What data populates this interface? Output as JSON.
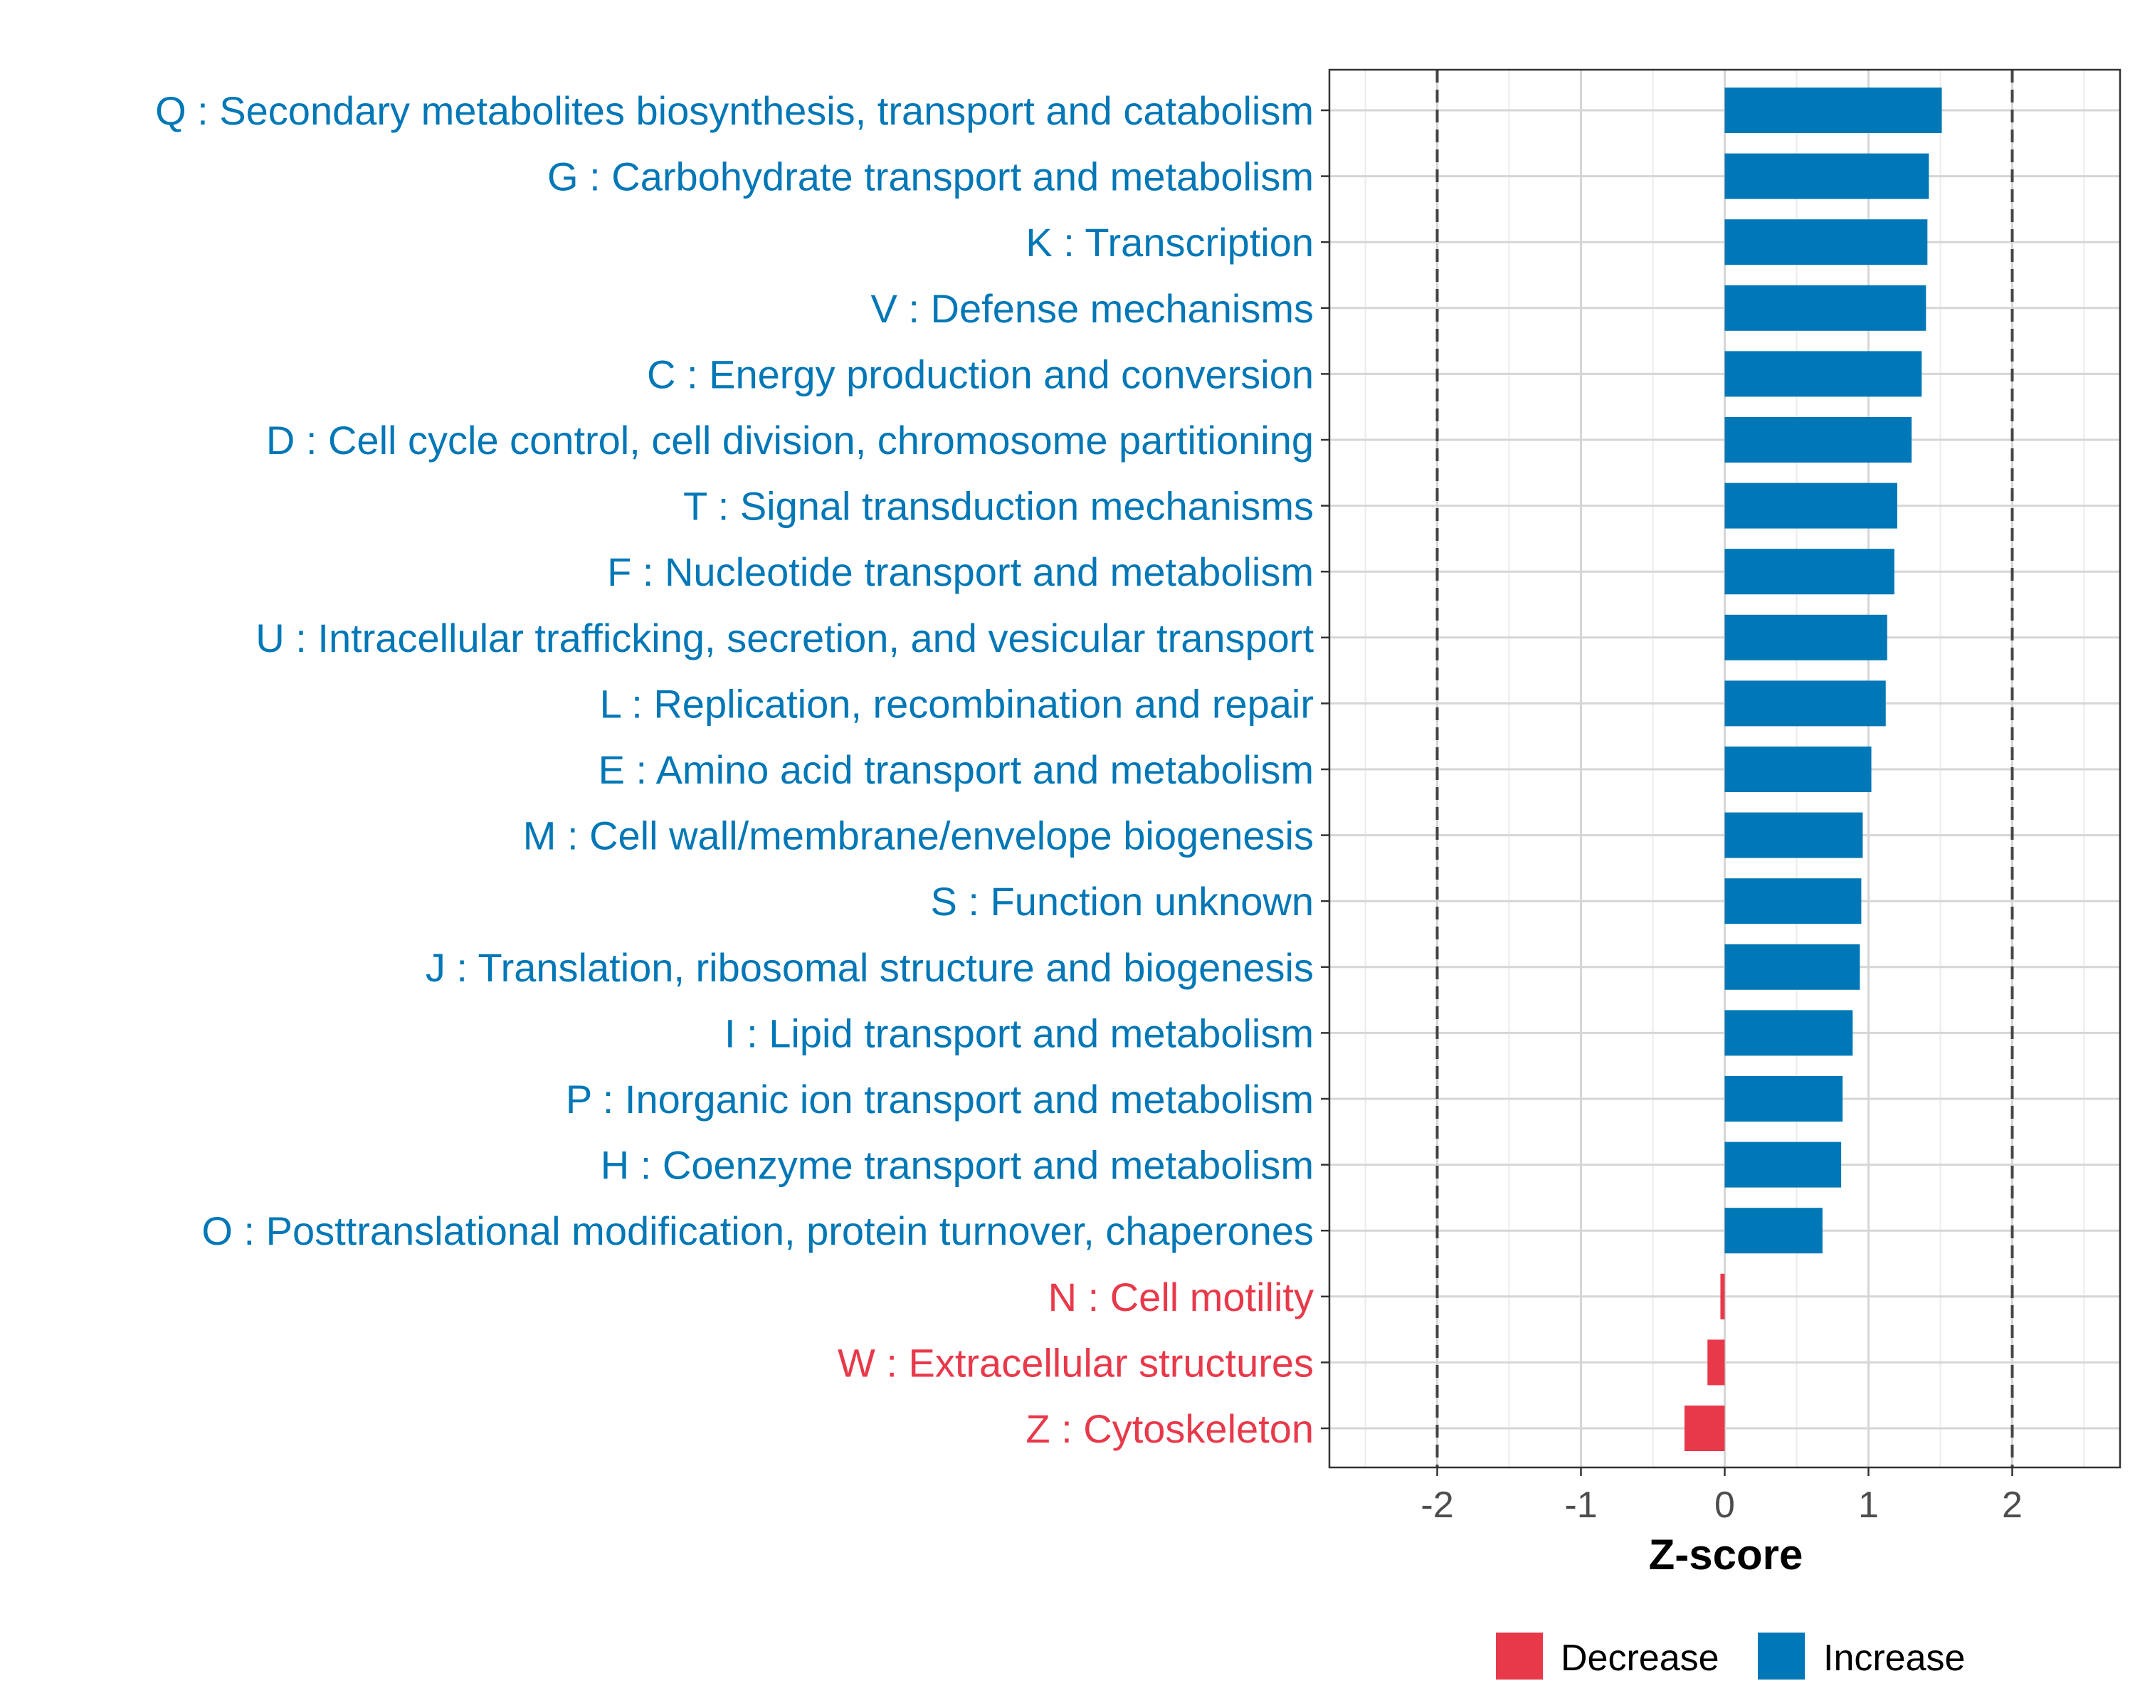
{
  "chart_data": {
    "type": "bar",
    "orientation": "horizontal",
    "xlabel": "Z-score",
    "ylabel": "",
    "xlim": [
      -2.75,
      2.75
    ],
    "x_ticks": [
      -2,
      -1,
      0,
      1,
      2
    ],
    "x_tick_labels": [
      "-2",
      "-1",
      "0",
      "1",
      "2"
    ],
    "reference_lines": [
      -2,
      2
    ],
    "grid": true,
    "legend_position": "bottom",
    "colors": {
      "Decrease": "#e8394a",
      "Increase": "#0077b6"
    },
    "legend": [
      {
        "label": "Decrease",
        "color": "#e8394a"
      },
      {
        "label": "Increase",
        "color": "#0077b6"
      }
    ],
    "categories": [
      "Q : Secondary metabolites biosynthesis, transport and catabolism",
      "G : Carbohydrate transport and metabolism",
      "K : Transcription",
      "V : Defense mechanisms",
      "C : Energy production and conversion",
      "D : Cell cycle control, cell division, chromosome partitioning",
      "T : Signal transduction mechanisms",
      "F : Nucleotide transport and metabolism",
      "U : Intracellular trafficking, secretion, and vesicular transport",
      "L : Replication, recombination and repair",
      "E : Amino acid transport and metabolism",
      "M : Cell wall/membrane/envelope biogenesis",
      "S : Function unknown",
      "J : Translation, ribosomal structure and biogenesis",
      "I : Lipid transport and metabolism",
      "P : Inorganic ion transport and metabolism",
      "H : Coenzyme transport and metabolism",
      "O : Posttranslational modification, protein turnover, chaperones",
      "N : Cell motility",
      "W : Extracellular structures",
      "Z : Cytoskeleton"
    ],
    "values": [
      1.51,
      1.42,
      1.41,
      1.4,
      1.37,
      1.3,
      1.2,
      1.18,
      1.13,
      1.12,
      1.02,
      0.96,
      0.95,
      0.94,
      0.89,
      0.82,
      0.81,
      0.68,
      -0.03,
      -0.12,
      -0.28
    ],
    "groups": [
      "Increase",
      "Increase",
      "Increase",
      "Increase",
      "Increase",
      "Increase",
      "Increase",
      "Increase",
      "Increase",
      "Increase",
      "Increase",
      "Increase",
      "Increase",
      "Increase",
      "Increase",
      "Increase",
      "Increase",
      "Increase",
      "Decrease",
      "Decrease",
      "Decrease"
    ]
  }
}
